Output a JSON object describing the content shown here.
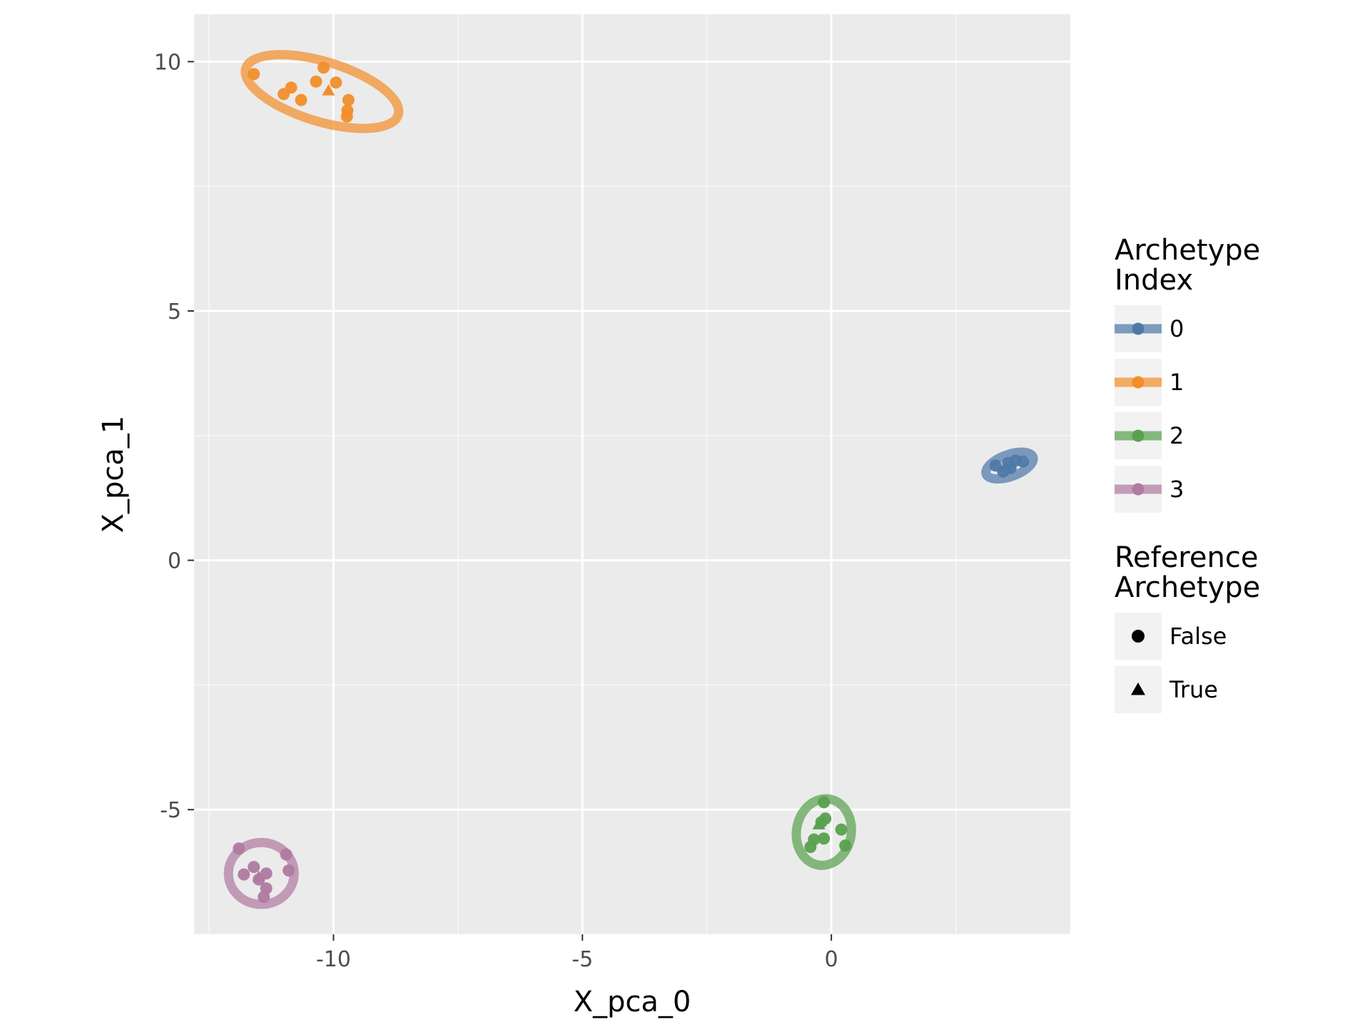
{
  "chart_data": {
    "type": "scatter",
    "title": "",
    "xlabel": "X_pca_0",
    "ylabel": "X_pca_1",
    "xlim": [
      -12.8,
      4.8
    ],
    "ylim": [
      -7.5,
      10.95
    ],
    "x_ticks": [
      -10,
      -5,
      0
    ],
    "x_tick_labels": [
      "-10",
      "-5",
      "0"
    ],
    "y_ticks": [
      -5,
      0,
      5,
      10
    ],
    "y_tick_labels": [
      "-5",
      "0",
      "5",
      "10"
    ],
    "grid": true,
    "legend_position": "right",
    "colors": {
      "0": "#4e79a7",
      "1": "#f28e2b",
      "2": "#59a14f",
      "3": "#b07aa1"
    },
    "legends": [
      {
        "title": [
          "Archetype",
          "Index"
        ],
        "entries": [
          "0",
          "1",
          "2",
          "3"
        ]
      },
      {
        "title": [
          "Reference",
          "Archetype"
        ],
        "entries": [
          "False",
          "True"
        ]
      }
    ],
    "series": [
      {
        "archetype_index": "0",
        "points": [
          {
            "x": 3.3,
            "y": 1.9,
            "reference": false
          },
          {
            "x": 3.45,
            "y": 1.78,
            "reference": false
          },
          {
            "x": 3.55,
            "y": 1.95,
            "reference": false
          },
          {
            "x": 3.6,
            "y": 1.85,
            "reference": false
          },
          {
            "x": 3.7,
            "y": 2.0,
            "reference": false
          },
          {
            "x": 3.85,
            "y": 1.98,
            "reference": false
          },
          {
            "x": 3.5,
            "y": 1.88,
            "reference": true
          }
        ],
        "ellipse": {
          "cx": 3.58,
          "cy": 1.9,
          "rx": 0.5,
          "ry": 0.22,
          "angle_deg": -20
        }
      },
      {
        "archetype_index": "1",
        "points": [
          {
            "x": -11.6,
            "y": 9.75,
            "reference": false
          },
          {
            "x": -10.2,
            "y": 9.88,
            "reference": false
          },
          {
            "x": -10.35,
            "y": 9.6,
            "reference": false
          },
          {
            "x": -9.95,
            "y": 9.58,
            "reference": false
          },
          {
            "x": -10.85,
            "y": 9.48,
            "reference": false
          },
          {
            "x": -11.0,
            "y": 9.35,
            "reference": false
          },
          {
            "x": -10.65,
            "y": 9.23,
            "reference": false
          },
          {
            "x": -9.7,
            "y": 9.23,
            "reference": false
          },
          {
            "x": -9.72,
            "y": 9.02,
            "reference": false
          },
          {
            "x": -9.73,
            "y": 8.9,
            "reference": false
          },
          {
            "x": -10.1,
            "y": 9.42,
            "reference": true
          }
        ],
        "ellipse": {
          "cx": -10.23,
          "cy": 9.4,
          "rx": 1.6,
          "ry": 0.6,
          "angle_deg": 17
        }
      },
      {
        "archetype_index": "2",
        "points": [
          {
            "x": -0.15,
            "y": -4.85,
            "reference": false
          },
          {
            "x": -0.2,
            "y": -5.25,
            "reference": false
          },
          {
            "x": -0.12,
            "y": -5.18,
            "reference": false
          },
          {
            "x": 0.2,
            "y": -5.4,
            "reference": false
          },
          {
            "x": -0.35,
            "y": -5.6,
            "reference": false
          },
          {
            "x": -0.15,
            "y": -5.58,
            "reference": false
          },
          {
            "x": 0.28,
            "y": -5.72,
            "reference": false
          },
          {
            "x": -0.42,
            "y": -5.75,
            "reference": false
          },
          {
            "x": -0.25,
            "y": -5.3,
            "reference": true
          }
        ],
        "ellipse": {
          "cx": -0.15,
          "cy": -5.45,
          "rx": 0.55,
          "ry": 0.67,
          "angle_deg": 10
        }
      },
      {
        "archetype_index": "3",
        "points": [
          {
            "x": -11.9,
            "y": -5.78,
            "reference": false
          },
          {
            "x": -10.95,
            "y": -5.9,
            "reference": false
          },
          {
            "x": -11.6,
            "y": -6.15,
            "reference": false
          },
          {
            "x": -11.8,
            "y": -6.3,
            "reference": false
          },
          {
            "x": -11.35,
            "y": -6.28,
            "reference": false
          },
          {
            "x": -10.9,
            "y": -6.22,
            "reference": false
          },
          {
            "x": -11.5,
            "y": -6.4,
            "reference": false
          },
          {
            "x": -11.35,
            "y": -6.58,
            "reference": false
          },
          {
            "x": -11.4,
            "y": -6.75,
            "reference": false
          },
          {
            "x": -11.5,
            "y": -6.35,
            "reference": true
          }
        ],
        "ellipse": {
          "cx": -11.45,
          "cy": -6.28,
          "rx": 0.66,
          "ry": 0.62,
          "angle_deg": 0
        }
      }
    ]
  }
}
